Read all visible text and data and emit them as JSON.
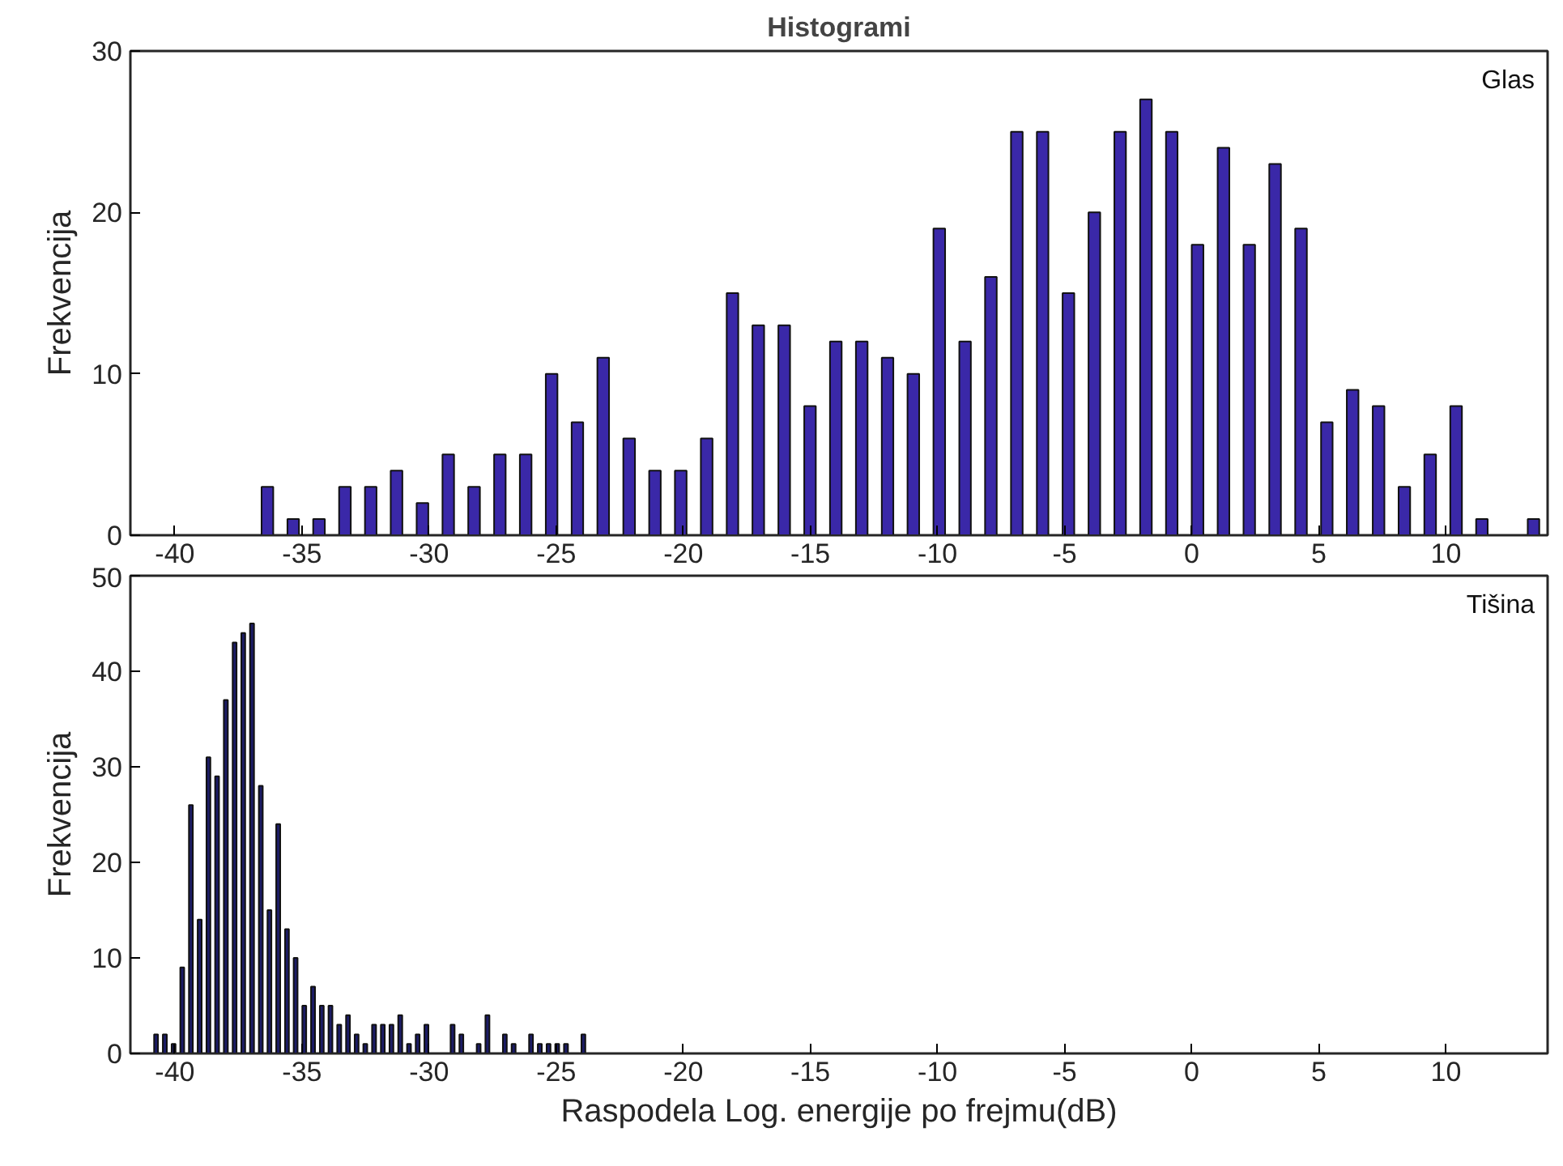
{
  "chart_data": [
    {
      "type": "histogram",
      "title": "Histogrami",
      "ylabel": "Frekvencija",
      "annotations": [
        "Glas"
      ],
      "color": "#3a28a8",
      "bins": [
        -36.87,
        -35.85,
        -34.84,
        -33.82,
        -32.8,
        -31.79,
        -30.77,
        -29.75,
        -28.74,
        -27.72,
        -26.71,
        -25.69,
        -24.67,
        -23.66,
        -22.64,
        -21.62,
        -20.61,
        -19.59,
        -18.57,
        -17.56,
        -16.54,
        -15.52,
        -14.51,
        -13.49,
        -12.47,
        -11.46,
        -10.44,
        -9.42,
        -8.41,
        -7.39,
        -6.37,
        -5.36,
        -4.34,
        -3.32,
        -2.31,
        -1.29,
        -0.28,
        0.74,
        1.76,
        2.77,
        3.79,
        4.81,
        5.82,
        6.84,
        7.86,
        8.87,
        9.89,
        10.91,
        11.92,
        12.94,
        13.95
      ],
      "values": [
        3,
        1,
        1,
        3,
        3,
        4,
        2,
        5,
        3,
        5,
        5,
        10,
        7,
        11,
        6,
        4,
        4,
        6,
        15,
        13,
        13,
        8,
        12,
        12,
        11,
        10,
        19,
        12,
        16,
        25,
        25,
        15,
        20,
        25,
        27,
        25,
        18,
        24,
        18,
        23,
        19,
        7,
        9,
        8,
        3,
        5,
        8,
        1,
        0,
        1
      ],
      "xlim": [
        -41.75,
        14
      ],
      "xticks": [
        -40,
        -35,
        -30,
        -25,
        -20,
        -15,
        -10,
        -5,
        0,
        5,
        10
      ],
      "ylim": [
        0,
        30
      ],
      "yticks": [
        0,
        10,
        20,
        30
      ],
      "grid": false
    },
    {
      "type": "histogram",
      "xlabel": "Raspodela Log. energije po frejmu(dB)",
      "ylabel": "Frekvencija",
      "annotations": [
        "Tišina"
      ],
      "color": "#1c1c66",
      "bins": [
        -40.91,
        -40.57,
        -40.22,
        -39.88,
        -39.54,
        -39.2,
        -38.85,
        -38.51,
        -38.17,
        -37.82,
        -37.48,
        -37.14,
        -36.79,
        -36.45,
        -36.11,
        -35.76,
        -35.42,
        -35.08,
        -34.74,
        -34.39,
        -34.05,
        -33.71,
        -33.36,
        -33.02,
        -32.68,
        -32.34,
        -31.99,
        -31.65,
        -31.31,
        -30.96,
        -30.62,
        -30.28,
        -29.93,
        -29.59,
        -29.25,
        -28.9,
        -28.56,
        -28.22,
        -27.88,
        -27.53,
        -27.19,
        -26.85,
        -26.5,
        -26.16,
        -25.82,
        -25.47,
        -25.13,
        -24.79,
        -24.44,
        -24.1,
        -23.76
      ],
      "values": [
        2,
        2,
        1,
        9,
        26,
        14,
        31,
        29,
        37,
        43,
        44,
        45,
        28,
        15,
        24,
        13,
        10,
        5,
        7,
        5,
        5,
        3,
        4,
        2,
        1,
        3,
        3,
        3,
        4,
        1,
        2,
        3,
        0,
        0,
        3,
        2,
        0,
        1,
        4,
        0,
        2,
        1,
        0,
        2,
        1,
        1,
        1,
        1,
        0,
        2
      ],
      "xlim": [
        -41.75,
        14
      ],
      "xticks": [
        -40,
        -35,
        -30,
        -25,
        -20,
        -15,
        -10,
        -5,
        0,
        5,
        10
      ],
      "ylim": [
        0,
        50
      ],
      "yticks": [
        0,
        10,
        20,
        30,
        40,
        50
      ],
      "grid": false
    }
  ]
}
